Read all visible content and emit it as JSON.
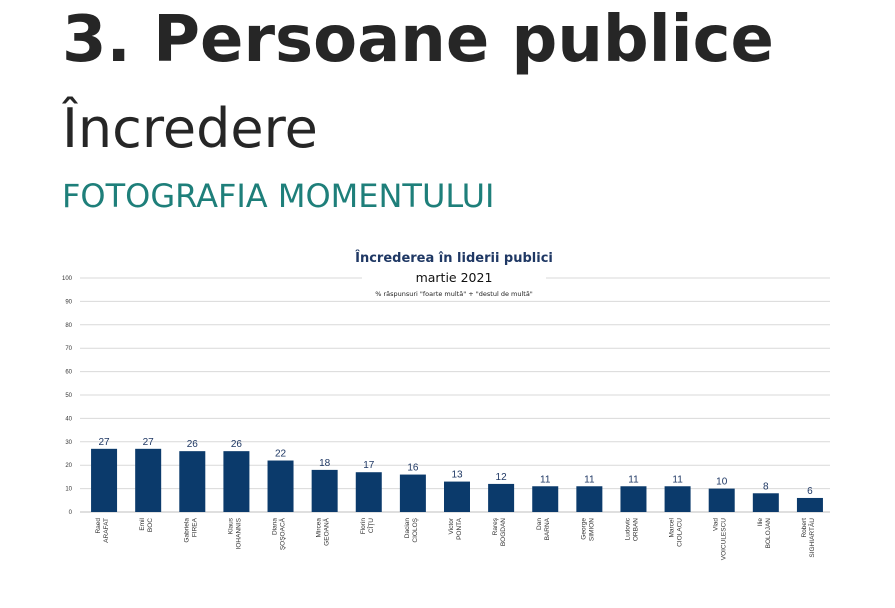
{
  "slide": {
    "heading": "3.  Persoane publice",
    "subheading": "Încredere",
    "section": "FOTOGRAFIA MOMENTULUI"
  },
  "colors": {
    "bar": "#0b3a6b",
    "section": "#1e7f7a",
    "grid": "#d9d9d9"
  },
  "chart_data": {
    "type": "bar",
    "title": "Încrederea în liderii publici",
    "subtitle": "martie 2021",
    "note": "% răspunsuri \"foarte multă\" + \"destul de multă\"",
    "ylim": [
      0,
      100
    ],
    "yticks": [
      "0",
      "10",
      "20",
      "30",
      "40",
      "50",
      "60",
      "70",
      "80",
      "90",
      "100"
    ],
    "grid": true,
    "categories": [
      [
        "Raed",
        "ARAFAT"
      ],
      [
        "Emil",
        "BOC"
      ],
      [
        "Gabriela",
        "FIREA"
      ],
      [
        "Klaus",
        "IOHANNIS"
      ],
      [
        "Diana",
        "ŞOŞOACĂ"
      ],
      [
        "Mircea",
        "GEOANĂ"
      ],
      [
        "Florin",
        "CÎŢU"
      ],
      [
        "Dacian",
        "CIOLOŞ"
      ],
      [
        "Victor",
        "PONTA"
      ],
      [
        "Rareş",
        "BOGDAN"
      ],
      [
        "Dan",
        "BARNA"
      ],
      [
        "George",
        "SIMION"
      ],
      [
        "Ludovic",
        "ORBAN"
      ],
      [
        "Marcel",
        "CIOLACU"
      ],
      [
        "Vlad",
        "VOICULESCU"
      ],
      [
        "Ilie",
        "BOLOJAN"
      ],
      [
        "Robert",
        "SIGHIARTĂU"
      ]
    ],
    "values": [
      27,
      27,
      26,
      26,
      22,
      18,
      17,
      16,
      13,
      12,
      11,
      11,
      11,
      11,
      10,
      8,
      6
    ]
  }
}
